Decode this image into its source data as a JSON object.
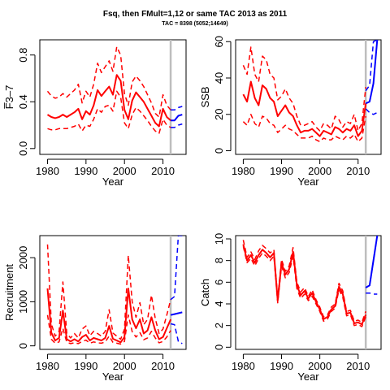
{
  "figure": {
    "title": "Fsq, then FMult=1,12 or same TAC 2013 as 2011",
    "subtitle": "TAC = 8398 (5052;14649)"
  },
  "colors": {
    "history": "#ff0000",
    "projection": "#0000ff",
    "vline": "#bebebe",
    "axis": "#000000"
  },
  "chart_data": [
    {
      "type": "line",
      "id": "fbar",
      "xlabel": "Year",
      "ylabel": "F̅3–7",
      "xlim": [
        1978,
        2016
      ],
      "ylim": [
        -0.05,
        0.93
      ],
      "xticks": [
        1980,
        1990,
        2000,
        2010
      ],
      "yticks": [
        0.0,
        0.4,
        0.8
      ],
      "ytick_labels": [
        "0.0",
        "0.4",
        "0.8"
      ],
      "vline_x": 2012,
      "history": {
        "x": [
          1980,
          1981,
          1982,
          1983,
          1984,
          1985,
          1986,
          1987,
          1988,
          1989,
          1990,
          1991,
          1992,
          1993,
          1994,
          1995,
          1996,
          1997,
          1998,
          1999,
          2000,
          2001,
          2002,
          2003,
          2004,
          2005,
          2006,
          2007,
          2008,
          2009,
          2010,
          2011,
          2012
        ],
        "median": [
          0.29,
          0.27,
          0.26,
          0.27,
          0.29,
          0.27,
          0.29,
          0.31,
          0.34,
          0.25,
          0.32,
          0.29,
          0.37,
          0.5,
          0.45,
          0.49,
          0.53,
          0.46,
          0.63,
          0.58,
          0.33,
          0.25,
          0.41,
          0.48,
          0.44,
          0.4,
          0.34,
          0.28,
          0.22,
          0.19,
          0.34,
          0.27,
          0.24
        ],
        "lower": [
          0.17,
          0.16,
          0.16,
          0.17,
          0.17,
          0.17,
          0.18,
          0.19,
          0.21,
          0.15,
          0.2,
          0.19,
          0.25,
          0.34,
          0.31,
          0.36,
          0.37,
          0.32,
          0.49,
          0.44,
          0.22,
          0.17,
          0.29,
          0.35,
          0.32,
          0.28,
          0.24,
          0.19,
          0.15,
          0.13,
          0.25,
          0.2,
          0.18
        ],
        "upper": [
          0.49,
          0.45,
          0.43,
          0.44,
          0.47,
          0.44,
          0.47,
          0.5,
          0.55,
          0.39,
          0.49,
          0.44,
          0.55,
          0.73,
          0.65,
          0.7,
          0.75,
          0.66,
          0.87,
          0.8,
          0.47,
          0.37,
          0.57,
          0.62,
          0.58,
          0.53,
          0.46,
          0.39,
          0.3,
          0.27,
          0.46,
          0.37,
          0.33
        ]
      },
      "projection": {
        "x": [
          2012,
          2013,
          2014,
          2015
        ],
        "median": [
          0.24,
          0.24,
          0.28,
          0.29
        ],
        "lower": [
          0.18,
          0.18,
          0.2,
          0.21
        ],
        "upper": [
          0.33,
          0.33,
          0.35,
          0.36
        ]
      }
    },
    {
      "type": "line",
      "id": "ssb",
      "xlabel": "Year",
      "ylabel": "SSB",
      "xlim": [
        1978,
        2016
      ],
      "ylim": [
        -2,
        61
      ],
      "xticks": [
        1980,
        1990,
        2000,
        2010
      ],
      "yticks": [
        0,
        20,
        40,
        60
      ],
      "ytick_labels": [
        "0",
        "20",
        "40",
        "60"
      ],
      "vline_x": 2012,
      "history": {
        "x": [
          1980,
          1981,
          1982,
          1983,
          1984,
          1985,
          1986,
          1987,
          1988,
          1989,
          1990,
          1991,
          1992,
          1993,
          1994,
          1995,
          1996,
          1997,
          1998,
          1999,
          2000,
          2001,
          2002,
          2003,
          2004,
          2005,
          2006,
          2007,
          2008,
          2009,
          2010,
          2011,
          2012
        ],
        "median": [
          31,
          27,
          38,
          29,
          25,
          36,
          34,
          29,
          27,
          19,
          22,
          25,
          21,
          19,
          14,
          10,
          11,
          11,
          12,
          10,
          8,
          11,
          10,
          9,
          13,
          12,
          10,
          12,
          11,
          14,
          8,
          11,
          26
        ],
        "lower": [
          16,
          14,
          20,
          15,
          13,
          19,
          18,
          15,
          14,
          10,
          12,
          14,
          12,
          11,
          9,
          7,
          7,
          7,
          8,
          6,
          5,
          7,
          6,
          6,
          8,
          7,
          6,
          8,
          7,
          9,
          5,
          7,
          19
        ],
        "upper": [
          47,
          42,
          57,
          42,
          38,
          52,
          50,
          42,
          40,
          28,
          30,
          34,
          29,
          26,
          19,
          14,
          14,
          15,
          16,
          13,
          11,
          15,
          14,
          12,
          19,
          17,
          13,
          16,
          15,
          20,
          11,
          15,
          35
        ]
      },
      "projection": {
        "x": [
          2012,
          2013,
          2014,
          2015
        ],
        "median": [
          26,
          27,
          37,
          61
        ],
        "lower": [
          23,
          21,
          20,
          21
        ],
        "upper": [
          33,
          36,
          60,
          61
        ]
      }
    },
    {
      "type": "line",
      "id": "recruitment",
      "xlabel": "Year",
      "ylabel": "Recruitment",
      "xlim": [
        1978,
        2016
      ],
      "ylim": [
        -80,
        2500
      ],
      "xticks": [
        1980,
        1990,
        2000,
        2010
      ],
      "yticks": [
        0,
        1000,
        2000
      ],
      "ytick_labels": [
        "0",
        "1000",
        "2000"
      ],
      "vline_x": 2012,
      "history": {
        "x": [
          1980,
          1981,
          1982,
          1983,
          1984,
          1985,
          1986,
          1987,
          1988,
          1989,
          1990,
          1991,
          1992,
          1993,
          1994,
          1995,
          1996,
          1997,
          1998,
          1999,
          2000,
          2001,
          2002,
          2003,
          2004,
          2005,
          2006,
          2007,
          2008,
          2009,
          2010,
          2011,
          2012
        ],
        "median": [
          1300,
          300,
          120,
          180,
          800,
          150,
          100,
          150,
          100,
          200,
          250,
          120,
          180,
          150,
          120,
          180,
          450,
          160,
          120,
          80,
          200,
          1300,
          600,
          400,
          600,
          280,
          350,
          650,
          350,
          150,
          200,
          400,
          600
        ],
        "lower": [
          700,
          150,
          60,
          90,
          400,
          80,
          50,
          70,
          50,
          100,
          130,
          60,
          90,
          70,
          60,
          90,
          220,
          80,
          60,
          40,
          100,
          700,
          320,
          200,
          300,
          140,
          180,
          330,
          180,
          70,
          100,
          200,
          350
        ],
        "upper": [
          2300,
          500,
          220,
          330,
          1450,
          280,
          180,
          280,
          180,
          380,
          450,
          230,
          330,
          280,
          220,
          330,
          820,
          290,
          220,
          150,
          380,
          2050,
          1000,
          650,
          980,
          480,
          600,
          1150,
          620,
          280,
          380,
          700,
          1050
        ]
      },
      "projection": {
        "x": [
          2012,
          2013,
          2014,
          2015
        ],
        "median": [
          700,
          720,
          740,
          760
        ],
        "lower": [
          500,
          480,
          100,
          50
        ],
        "upper": [
          1050,
          1120,
          2500,
          2500
        ]
      }
    },
    {
      "type": "line",
      "id": "catch",
      "xlabel": "Year",
      "ylabel": "Catch",
      "xlim": [
        1978,
        2016
      ],
      "ylim": [
        -0.2,
        10.3
      ],
      "xticks": [
        1980,
        1990,
        2000,
        2010
      ],
      "yticks": [
        0,
        2,
        4,
        6,
        8,
        10
      ],
      "ytick_labels": [
        "0",
        "2",
        "4",
        "6",
        "8",
        "10"
      ],
      "vline_x": 2012,
      "history": {
        "x": [
          1980,
          1981,
          1982,
          1983,
          1984,
          1985,
          1986,
          1987,
          1988,
          1989,
          1990,
          1991,
          1992,
          1993,
          1994,
          1995,
          1996,
          1997,
          1998,
          1999,
          2000,
          2001,
          2002,
          2003,
          2004,
          2005,
          2006,
          2007,
          2008,
          2009,
          2010,
          2011,
          2012
        ],
        "median": [
          9.5,
          8.0,
          8.5,
          7.8,
          8.5,
          9.0,
          8.7,
          8.3,
          8.7,
          4.3,
          7.8,
          6.7,
          7.2,
          8.8,
          5.7,
          4.8,
          5.2,
          4.5,
          5.0,
          4.2,
          3.5,
          2.6,
          2.8,
          3.5,
          3.8,
          5.6,
          4.9,
          3.1,
          3.2,
          2.2,
          2.3,
          2.1,
          3.0
        ],
        "lower": [
          9.3,
          7.8,
          8.2,
          7.5,
          8.2,
          8.7,
          8.4,
          8.0,
          8.4,
          4.1,
          7.5,
          6.4,
          6.9,
          8.4,
          5.4,
          4.5,
          4.9,
          4.3,
          4.7,
          4.0,
          3.3,
          2.4,
          2.6,
          3.3,
          3.6,
          5.3,
          4.6,
          2.9,
          3.0,
          2.0,
          2.1,
          1.9,
          2.8
        ],
        "upper": [
          9.9,
          8.3,
          8.8,
          8.1,
          8.9,
          9.4,
          9.1,
          8.7,
          9.0,
          4.5,
          8.1,
          7.0,
          7.5,
          9.2,
          6.0,
          5.1,
          5.5,
          4.7,
          5.3,
          4.4,
          3.7,
          2.8,
          3.0,
          3.7,
          4.0,
          5.9,
          5.2,
          3.3,
          3.4,
          2.4,
          2.5,
          2.3,
          3.3
        ]
      },
      "projection": {
        "x": [
          2012,
          2013,
          2014,
          2015
        ],
        "median": [
          5.5,
          5.7,
          8.0,
          10.3
        ],
        "lower": [
          5.0,
          5.0,
          4.9,
          4.9
        ],
        "upper": [
          5.5,
          5.7,
          8.0,
          10.3
        ]
      }
    }
  ]
}
